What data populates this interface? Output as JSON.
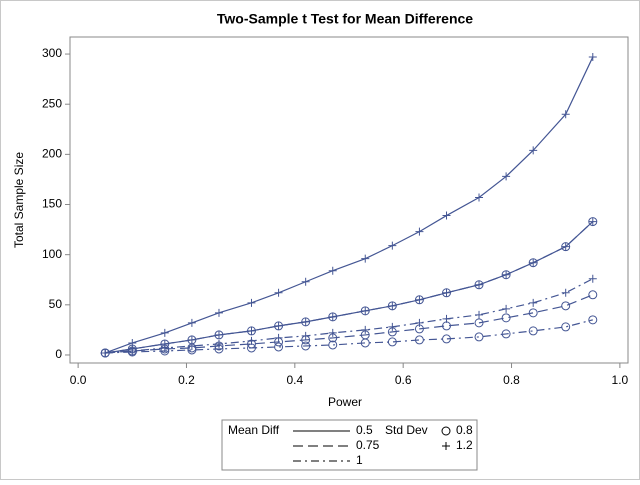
{
  "chart_data": {
    "type": "line",
    "title": "Two-Sample t Test for Mean Difference",
    "xlabel": "Power",
    "ylabel": "Total Sample Size",
    "x": [
      0.05,
      0.1,
      0.16,
      0.21,
      0.26,
      0.32,
      0.37,
      0.42,
      0.47,
      0.53,
      0.58,
      0.63,
      0.68,
      0.74,
      0.79,
      0.84,
      0.9,
      0.95
    ],
    "series": [
      {
        "mean_diff": "0.5",
        "std_dev": "0.8",
        "color": "#445694",
        "values": [
          2,
          6,
          11,
          15,
          20,
          24,
          29,
          33,
          38,
          44,
          49,
          55,
          62,
          70,
          80,
          92,
          108,
          133
        ]
      },
      {
        "mean_diff": "0.5",
        "std_dev": "1.2",
        "color": "#445694",
        "values": [
          2,
          12,
          22,
          32,
          42,
          52,
          62,
          73,
          84,
          96,
          109,
          123,
          139,
          157,
          178,
          204,
          240,
          297
        ]
      },
      {
        "mean_diff": "0.75",
        "std_dev": "0.8",
        "color": "#445694",
        "values": [
          2,
          4,
          6,
          7,
          9,
          11,
          13,
          15,
          17,
          20,
          23,
          26,
          29,
          32,
          37,
          42,
          49,
          60
        ]
      },
      {
        "mean_diff": "0.75",
        "std_dev": "1.2",
        "color": "#445694",
        "values": [
          2,
          6,
          11,
          15,
          20,
          24,
          29,
          33,
          38,
          44,
          49,
          55,
          62,
          70,
          80,
          92,
          108,
          133
        ]
      },
      {
        "mean_diff": "1",
        "std_dev": "0.8",
        "color": "#445694",
        "values": [
          2,
          3,
          4,
          5,
          6,
          7,
          8,
          9,
          10,
          12,
          13,
          15,
          16,
          18,
          21,
          24,
          28,
          35
        ]
      },
      {
        "mean_diff": "1",
        "std_dev": "1.2",
        "color": "#445694",
        "values": [
          2,
          4,
          7,
          9,
          11,
          14,
          17,
          19,
          22,
          25,
          28,
          32,
          36,
          40,
          46,
          52,
          62,
          76
        ]
      }
    ],
    "legend": {
      "line_title": "Mean Diff",
      "line_items": [
        "0.5",
        "0.75",
        "1"
      ],
      "marker_title": "Std Dev",
      "marker_items": [
        "0.8",
        "1.2"
      ]
    },
    "xlim": [
      -0.015,
      1.015
    ],
    "xticks": [
      {
        "value": 0,
        "label": "0.0"
      },
      0.2,
      0.4,
      0.6,
      0.8,
      {
        "value": 1,
        "label": "1.0"
      }
    ],
    "ylim": [
      -8,
      317
    ],
    "yticks": [
      0,
      50,
      100,
      150,
      200,
      250,
      300
    ]
  }
}
